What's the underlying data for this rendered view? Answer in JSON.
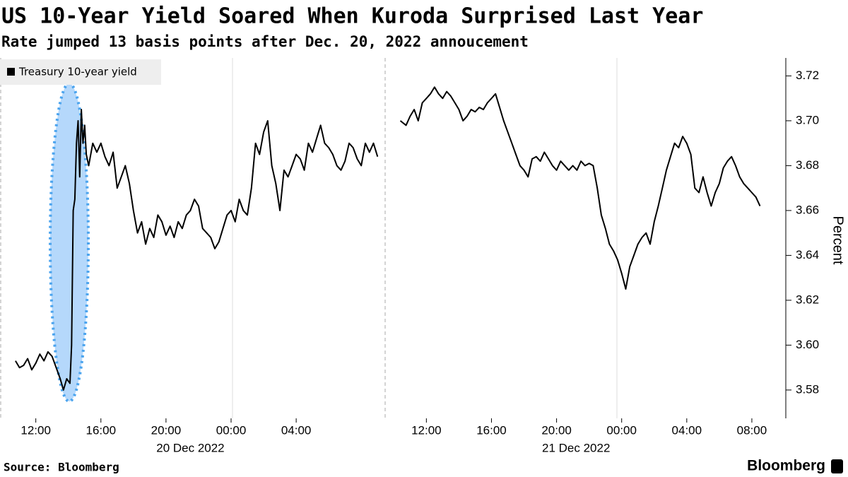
{
  "chart_data": {
    "type": "line",
    "title": "US 10-Year Yield Soared When Kuroda Surprised Last Year",
    "subtitle": "Rate jumped 13 basis points after Dec. 20, 2022 annoucement",
    "y_label": "Percent",
    "source": "Source: Bloomberg",
    "logo": "Bloomberg",
    "xlim": [
      9.8,
      58.0
    ],
    "xticks": [
      {
        "value": 12,
        "label": "12:00"
      },
      {
        "value": 16,
        "label": "16:00"
      },
      {
        "value": 20,
        "label": "20:00"
      },
      {
        "value": 24,
        "label": "00:00"
      },
      {
        "value": 28,
        "label": "04:00"
      },
      {
        "value": 36,
        "label": "12:00"
      },
      {
        "value": 40,
        "label": "16:00"
      },
      {
        "value": 44,
        "label": "20:00"
      },
      {
        "value": 48,
        "label": "00:00"
      },
      {
        "value": 52,
        "label": "04:00"
      },
      {
        "value": 56,
        "label": "08:00"
      }
    ],
    "date_labels": [
      {
        "value": 21.5,
        "label": "20 Dec 2022"
      },
      {
        "value": 45.2,
        "label": "21 Dec 2022"
      }
    ],
    "ylim": [
      3.568,
      3.728
    ],
    "yticks": [
      3.58,
      {
        "value": 3.6,
        "label": "3.60"
      },
      3.62,
      3.64,
      3.66,
      3.68,
      {
        "value": 3.7,
        "label": "3.70"
      },
      3.72
    ],
    "legend": "top-left",
    "x": [
      10.75,
      11,
      11.25,
      11.5,
      11.75,
      12,
      12.25,
      12.5,
      12.75,
      13,
      13.25,
      13.5,
      13.7,
      13.9,
      14.1,
      14.2,
      14.3,
      14.4,
      14.5,
      14.6,
      14.7,
      14.8,
      14.9,
      15,
      15.1,
      15.25,
      15.5,
      15.75,
      16,
      16.25,
      16.5,
      16.75,
      17,
      17.25,
      17.5,
      17.75,
      18,
      18.25,
      18.5,
      18.75,
      19,
      19.25,
      19.5,
      19.75,
      20,
      20.25,
      20.5,
      20.75,
      21,
      21.25,
      21.5,
      21.75,
      22,
      22.25,
      22.5,
      22.75,
      23,
      23.25,
      23.5,
      23.75,
      24,
      24.25,
      24.5,
      24.75,
      25,
      25.25,
      25.5,
      25.75,
      26,
      26.25,
      26.5,
      26.75,
      27,
      27.25,
      27.5,
      27.75,
      28,
      28.25,
      28.5,
      28.75,
      29,
      29.25,
      29.5,
      29.75,
      30,
      30.25,
      30.5,
      30.75,
      31,
      31.25,
      31.5,
      31.75,
      32,
      32.25,
      32.5,
      32.75,
      33,
      33.7,
      34.4,
      34.75,
      35,
      35.25,
      35.5,
      35.75,
      36,
      36.25,
      36.5,
      36.75,
      37,
      37.25,
      37.5,
      37.75,
      38,
      38.25,
      38.5,
      38.75,
      39,
      39.25,
      39.5,
      39.75,
      40,
      40.25,
      40.5,
      40.75,
      41,
      41.25,
      41.5,
      41.75,
      42,
      42.25,
      42.5,
      42.75,
      43,
      43.25,
      43.5,
      43.75,
      44,
      44.25,
      44.5,
      44.75,
      45,
      45.25,
      45.5,
      45.75,
      46,
      46.25,
      46.5,
      46.75,
      47,
      47.25,
      47.5,
      47.75,
      48,
      48.25,
      48.5,
      48.75,
      49,
      49.25,
      49.5,
      49.75,
      50,
      50.25,
      50.5,
      50.75,
      51,
      51.25,
      51.5,
      51.75,
      52,
      52.25,
      52.5,
      52.75,
      53,
      53.25,
      53.5,
      53.75,
      54,
      54.25,
      54.5,
      54.75,
      55,
      55.25,
      55.5,
      55.75,
      56,
      56.25,
      56.5
    ],
    "series": [
      {
        "name": "Treasury 10-year yield",
        "color": "#000000",
        "values": [
          3.593,
          3.59,
          3.591,
          3.594,
          3.589,
          3.592,
          3.596,
          3.593,
          3.597,
          3.595,
          3.59,
          3.585,
          3.58,
          3.585,
          3.583,
          3.6,
          3.66,
          3.665,
          3.69,
          3.7,
          3.675,
          3.705,
          3.69,
          3.698,
          3.685,
          3.68,
          3.69,
          3.686,
          3.69,
          3.684,
          3.68,
          3.686,
          3.67,
          3.675,
          3.68,
          3.672,
          3.66,
          3.65,
          3.655,
          3.645,
          3.652,
          3.648,
          3.658,
          3.655,
          3.649,
          3.653,
          3.648,
          3.655,
          3.652,
          3.658,
          3.66,
          3.665,
          3.662,
          3.652,
          3.65,
          3.648,
          3.643,
          3.646,
          3.652,
          3.658,
          3.66,
          3.655,
          3.665,
          3.66,
          3.658,
          3.67,
          3.69,
          3.685,
          3.695,
          3.7,
          3.68,
          3.672,
          3.66,
          3.678,
          3.675,
          3.68,
          3.685,
          3.683,
          3.678,
          3.69,
          3.686,
          3.692,
          3.698,
          3.69,
          3.688,
          3.685,
          3.68,
          3.678,
          3.682,
          3.69,
          3.688,
          3.683,
          3.68,
          3.69,
          3.686,
          3.69,
          3.684,
          null,
          3.7,
          3.698,
          3.702,
          3.705,
          3.7,
          3.708,
          3.71,
          3.712,
          3.715,
          3.712,
          3.71,
          3.713,
          3.711,
          3.708,
          3.705,
          3.7,
          3.702,
          3.705,
          3.704,
          3.706,
          3.705,
          3.708,
          3.71,
          3.712,
          3.706,
          3.7,
          3.695,
          3.69,
          3.685,
          3.68,
          3.678,
          3.675,
          3.683,
          3.684,
          3.682,
          3.686,
          3.683,
          3.68,
          3.678,
          3.682,
          3.68,
          3.678,
          3.68,
          3.678,
          3.682,
          3.68,
          3.681,
          3.68,
          3.67,
          3.658,
          3.652,
          3.645,
          3.642,
          3.638,
          3.632,
          3.625,
          3.635,
          3.64,
          3.645,
          3.648,
          3.65,
          3.645,
          3.655,
          3.662,
          3.67,
          3.678,
          3.684,
          3.69,
          3.688,
          3.693,
          3.69,
          3.685,
          3.67,
          3.668,
          3.675,
          3.668,
          3.662,
          3.668,
          3.672,
          3.679,
          3.682,
          3.684,
          3.68,
          3.675,
          3.672,
          3.67,
          3.668,
          3.666,
          3.662
        ]
      }
    ]
  }
}
